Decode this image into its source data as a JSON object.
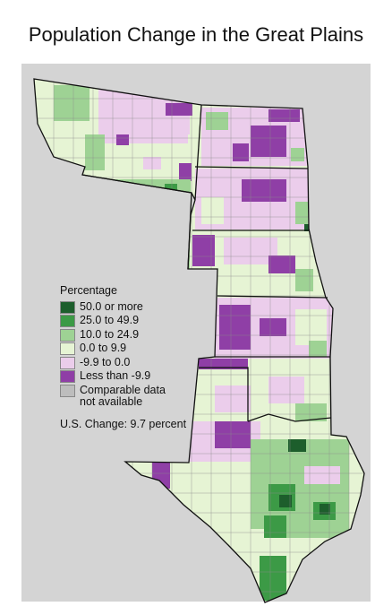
{
  "title": "Population Change in the Great Plains",
  "legend": {
    "title": "Percentage",
    "items": [
      {
        "label": "50.0 or more",
        "color": "#1d5e2c"
      },
      {
        "label": "25.0 to 49.9",
        "color": "#3c9a46"
      },
      {
        "label": "10.0 to 24.9",
        "color": "#9ed294"
      },
      {
        "label": "0.0 to 9.9",
        "color": "#e6f4d4"
      },
      {
        "label": "-9.9 to 0.0",
        "color": "#ebcdeb"
      },
      {
        "label": "Less than -9.9",
        "color": "#8f3fa6"
      },
      {
        "label": "Comparable data\nnot available",
        "color": "#bdbdbd"
      }
    ]
  },
  "note": "U.S. Change: 9.7 percent",
  "map_colors": {
    "panel_bg": "#d4d4d4",
    "border": "#111111",
    "county_line": "#8a8a8a"
  }
}
